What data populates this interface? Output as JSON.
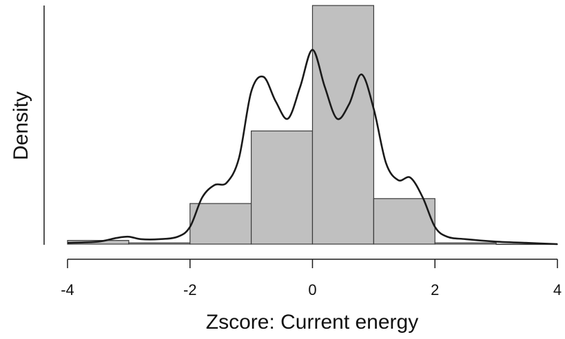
{
  "chart_data": {
    "type": "bar",
    "title": "",
    "xlabel": "Zscore:  Current energy",
    "ylabel": "Density",
    "xlim": [
      -4,
      4
    ],
    "x_ticks": [
      -4,
      -2,
      0,
      2,
      4
    ],
    "y_axis_ticks": false,
    "grid": false,
    "bins": [
      {
        "start": -4,
        "end": -3,
        "density": 0.015
      },
      {
        "start": -3,
        "end": -2,
        "density": 0.005
      },
      {
        "start": -2,
        "end": -1,
        "density": 0.165
      },
      {
        "start": -1,
        "end": 0,
        "density": 0.46
      },
      {
        "start": 0,
        "end": 1,
        "density": 0.97
      },
      {
        "start": 1,
        "end": 2,
        "density": 0.185
      },
      {
        "start": 2,
        "end": 3,
        "density": 0.005
      },
      {
        "start": 3,
        "end": 4,
        "density": 0.0
      }
    ],
    "density_curve": {
      "x": [
        -4.0,
        -3.5,
        -3.2,
        -3.0,
        -2.8,
        -2.5,
        -2.2,
        -2.0,
        -1.8,
        -1.6,
        -1.4,
        -1.2,
        -1.0,
        -0.8,
        -0.6,
        -0.4,
        -0.2,
        0.0,
        0.2,
        0.4,
        0.6,
        0.8,
        1.0,
        1.2,
        1.4,
        1.6,
        1.8,
        2.0,
        2.2,
        2.5,
        3.0,
        3.5,
        4.0
      ],
      "y": [
        0.005,
        0.01,
        0.025,
        0.03,
        0.02,
        0.02,
        0.03,
        0.07,
        0.19,
        0.24,
        0.25,
        0.35,
        0.62,
        0.68,
        0.58,
        0.51,
        0.64,
        0.79,
        0.64,
        0.51,
        0.57,
        0.69,
        0.55,
        0.33,
        0.26,
        0.27,
        0.19,
        0.07,
        0.03,
        0.02,
        0.01,
        0.005,
        0.0
      ],
      "color": "#1a1a1a"
    },
    "bar_fill": "#c0c0c0",
    "bar_stroke": "#3a3a3a",
    "ylim": [
      0,
      0.97
    ]
  }
}
